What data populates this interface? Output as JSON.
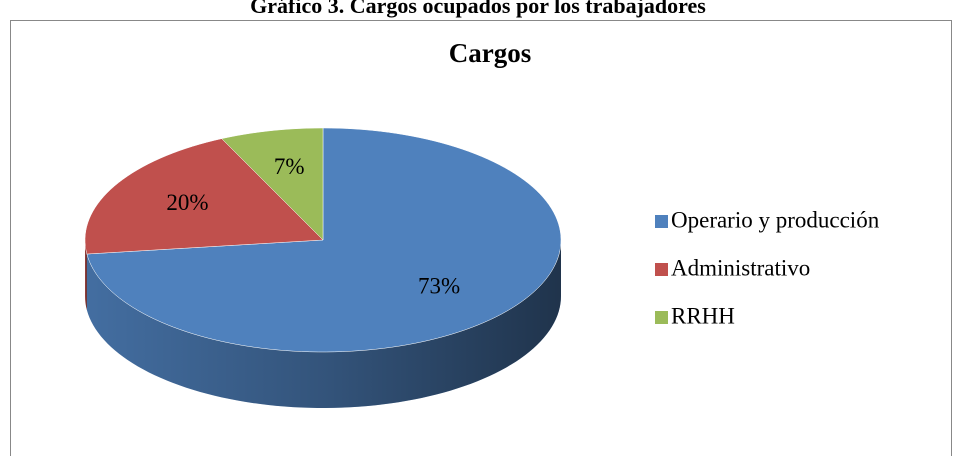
{
  "header": {
    "title": "Gráfico 3. Cargos ocupados por los trabajadores"
  },
  "chart_data": {
    "type": "pie",
    "title": "Cargos",
    "categories": [
      "Operario y producción",
      "Administrativo",
      "RRHH"
    ],
    "values": [
      73,
      20,
      7
    ],
    "value_labels": [
      "73%",
      "20%",
      "7%"
    ],
    "colors": [
      "#4f81bd",
      "#c0504d",
      "#9bbb59"
    ],
    "legend": "right"
  }
}
